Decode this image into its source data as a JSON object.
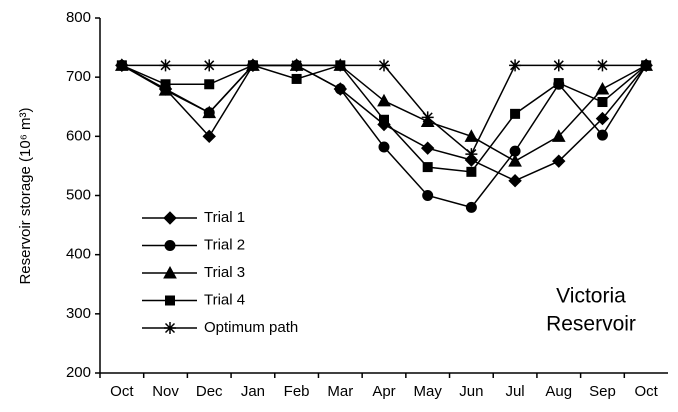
{
  "chart_data": {
    "type": "line",
    "y_label": "Reservoir storage (10⁶ m³)",
    "annotation": [
      "Victoria",
      "Reservoir"
    ],
    "categories": [
      "Oct",
      "Nov",
      "Dec",
      "Jan",
      "Feb",
      "Mar",
      "Apr",
      "May",
      "Jun",
      "Jul",
      "Aug",
      "Sep",
      "Oct"
    ],
    "ylim": [
      200,
      800
    ],
    "yticks": [
      200,
      300,
      400,
      500,
      600,
      700,
      800
    ],
    "grid": false,
    "legend": "lower left",
    "series": [
      {
        "name": "Trial 1",
        "color": "#000000",
        "marker": "diamond",
        "values": [
          720,
          680,
          600,
          720,
          720,
          680,
          620,
          580,
          560,
          525,
          558,
          630,
          720
        ]
      },
      {
        "name": "Trial 2",
        "color": "#000000",
        "marker": "circle",
        "values": [
          720,
          680,
          640,
          720,
          720,
          680,
          582,
          500,
          480,
          575,
          688,
          602,
          720
        ]
      },
      {
        "name": "Trial 3",
        "color": "#000000",
        "marker": "triangle",
        "values": [
          720,
          678,
          640,
          720,
          720,
          720,
          660,
          625,
          600,
          558,
          600,
          680,
          720
        ]
      },
      {
        "name": "Trial 4",
        "color": "#000000",
        "marker": "square",
        "values": [
          720,
          688,
          688,
          720,
          697,
          720,
          628,
          548,
          540,
          638,
          690,
          658,
          720
        ]
      },
      {
        "name": "Optimum path",
        "color": "#000000",
        "marker": "star",
        "values": [
          720,
          720,
          720,
          720,
          720,
          720,
          720,
          632,
          570,
          720,
          720,
          720,
          720
        ]
      }
    ]
  }
}
